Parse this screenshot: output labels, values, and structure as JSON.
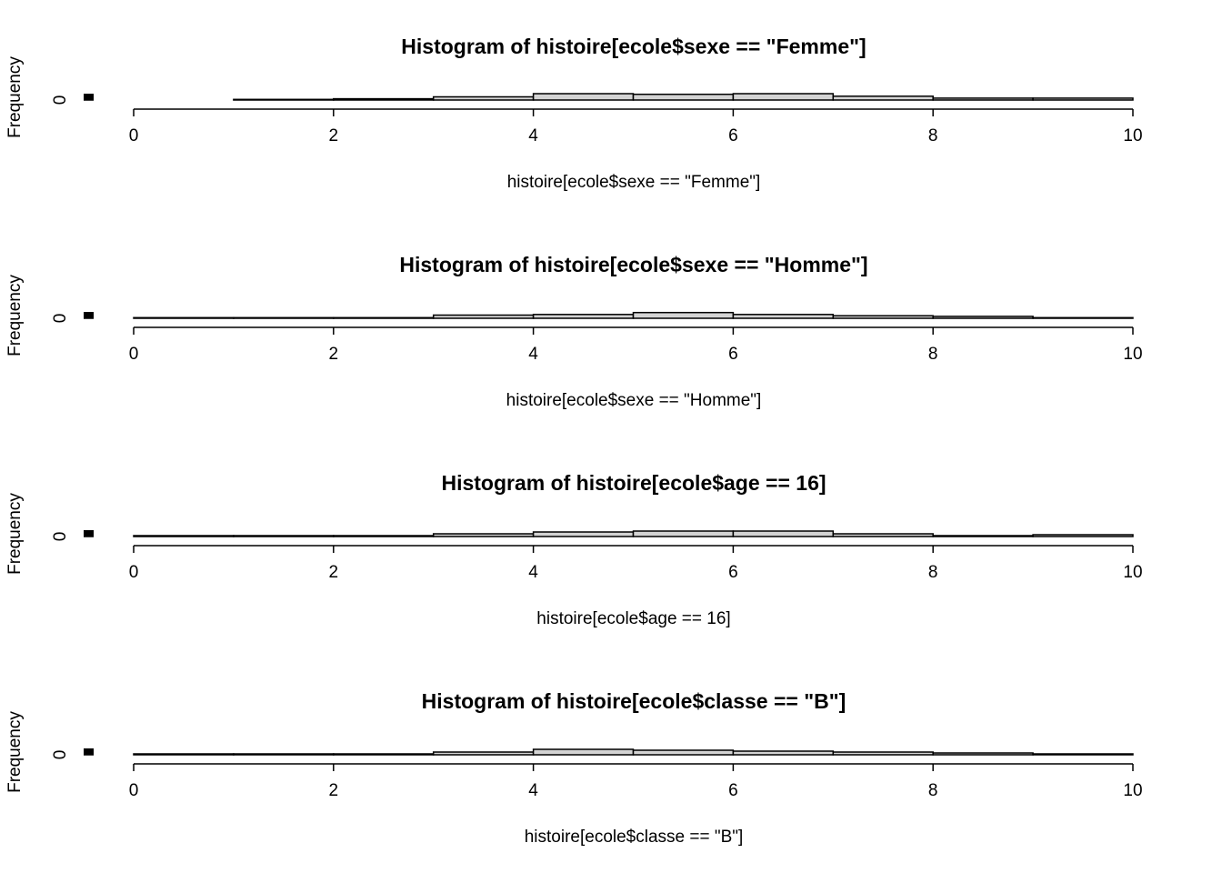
{
  "chart_data": [
    {
      "type": "histogram",
      "title": "Histogram of histoire[ecole$sexe == \"Femme\"]",
      "x_label": "histoire[ecole$sexe == \"Femme\"]",
      "y_label": "Frequency",
      "bins": [
        0,
        1,
        2,
        3,
        4,
        5,
        6,
        7,
        8,
        9,
        10
      ],
      "values": [
        0,
        1,
        2,
        5,
        10,
        9,
        10,
        6,
        3,
        3
      ],
      "color": "#d3d3d3",
      "xlim": [
        0,
        10
      ],
      "xticks": [
        0,
        2,
        4,
        6,
        8,
        10
      ],
      "ylim": [
        0,
        10
      ],
      "yticks": [
        0
      ]
    },
    {
      "type": "histogram",
      "title": "Histogram of histoire[ecole$sexe == \"Homme\"]",
      "x_label": "histoire[ecole$sexe == \"Homme\"]",
      "y_label": "Frequency",
      "bins": [
        0,
        1,
        2,
        3,
        4,
        5,
        6,
        7,
        8,
        9,
        10
      ],
      "values": [
        1,
        1,
        1,
        5,
        6,
        9,
        6,
        4,
        3,
        1
      ],
      "color": "#d3d3d3",
      "xlim": [
        0,
        10
      ],
      "xticks": [
        0,
        2,
        4,
        6,
        8,
        10
      ],
      "ylim": [
        0,
        10
      ],
      "yticks": [
        0
      ]
    },
    {
      "type": "histogram",
      "title": "Histogram of histoire[ecole$age == 16]",
      "x_label": "histoire[ecole$age == 16]",
      "y_label": "Frequency",
      "bins": [
        0,
        1,
        2,
        3,
        4,
        5,
        6,
        7,
        8,
        9,
        10
      ],
      "values": [
        1,
        1,
        1,
        3,
        5,
        6,
        6,
        3,
        1,
        2
      ],
      "color": "#d3d3d3",
      "xlim": [
        0,
        10
      ],
      "xticks": [
        0,
        2,
        4,
        6,
        8,
        10
      ],
      "ylim": [
        0,
        7
      ],
      "yticks": [
        0
      ]
    },
    {
      "type": "histogram",
      "title": "Histogram of histoire[ecole$classe == \"B\"]",
      "x_label": "histoire[ecole$classe == \"B\"]",
      "y_label": "Frequency",
      "bins": [
        0,
        1,
        2,
        3,
        4,
        5,
        6,
        7,
        8,
        9,
        10
      ],
      "values": [
        1,
        1,
        1,
        3,
        6,
        5,
        4,
        3,
        2,
        1
      ],
      "color": "#d3d3d3",
      "xlim": [
        0,
        10
      ],
      "xticks": [
        0,
        2,
        4,
        6,
        8,
        10
      ],
      "ylim": [
        0,
        7
      ],
      "yticks": [
        0
      ]
    }
  ]
}
